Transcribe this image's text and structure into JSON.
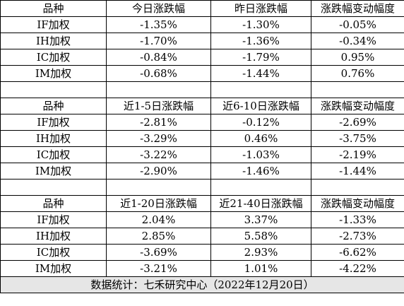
{
  "blocks": [
    {
      "headers": [
        "品种",
        "今日涨跌幅",
        "昨日涨跌幅",
        "涨跌幅变动幅度"
      ],
      "rows": [
        {
          "name": "IF加权",
          "a": "-1.35%",
          "b": "-1.30%",
          "c": "-0.05%"
        },
        {
          "name": "IH加权",
          "a": "-1.70%",
          "b": "-1.36%",
          "c": "-0.34%"
        },
        {
          "name": "IC加权",
          "a": "-0.84%",
          "b": "-1.79%",
          "c": "0.95%"
        },
        {
          "name": "IM加权",
          "a": "-0.68%",
          "b": "-1.44%",
          "c": "0.76%"
        }
      ]
    },
    {
      "headers": [
        "品种",
        "近1-5日涨跌幅",
        "近6-10日涨跌幅",
        "涨跌幅变动幅度"
      ],
      "rows": [
        {
          "name": "IF加权",
          "a": "-2.81%",
          "b": "-0.12%",
          "c": "-2.69%"
        },
        {
          "name": "IH加权",
          "a": "-3.29%",
          "b": "0.46%",
          "c": "-3.75%"
        },
        {
          "name": "IC加权",
          "a": "-3.22%",
          "b": "-1.03%",
          "c": "-2.19%"
        },
        {
          "name": "IM加权",
          "a": "-2.90%",
          "b": "-1.46%",
          "c": "-1.44%"
        }
      ]
    },
    {
      "headers": [
        "品种",
        "近1-20日涨跌幅",
        "近21-40日涨跌幅",
        "涨跌幅变动幅度"
      ],
      "rows": [
        {
          "name": "IF加权",
          "a": "2.04%",
          "b": "3.37%",
          "c": "-1.33%"
        },
        {
          "name": "IH加权",
          "a": "2.85%",
          "b": "5.58%",
          "c": "-2.73%"
        },
        {
          "name": "IC加权",
          "a": "-3.69%",
          "b": "2.93%",
          "c": "-6.62%"
        },
        {
          "name": "IM加权",
          "a": "-3.21%",
          "b": "1.01%",
          "c": "-4.22%"
        }
      ]
    }
  ],
  "footer": "数据统计：七禾研究中心（2022年12月20日）"
}
